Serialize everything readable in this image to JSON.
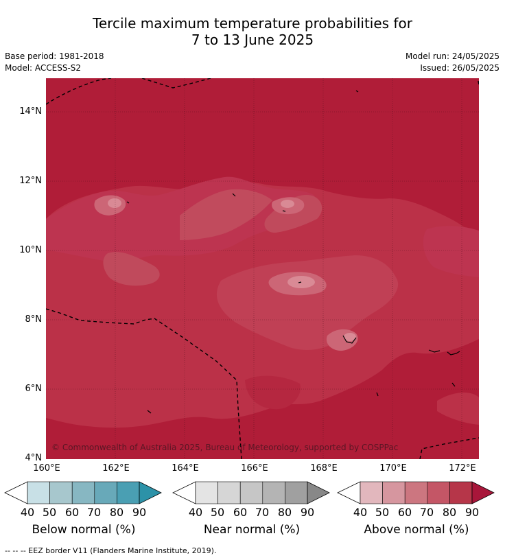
{
  "title_line1": "Tercile maximum temperature probabilities for",
  "title_line2": "7 to 13 June 2025",
  "base_period": "Base period: 1981-2018",
  "model": "Model: ACCESS-S2",
  "model_run": "Model run: 24/05/2025",
  "issued": "Issued: 26/05/2025",
  "lat_labels": [
    "14°N",
    "12°N",
    "10°N",
    "8°N",
    "6°N",
    "4°N"
  ],
  "lon_labels": [
    "160°E",
    "162°E",
    "164°E",
    "166°E",
    "168°E",
    "170°E",
    "172°E"
  ],
  "copyright": "© Commonwealth of Australia 2025, Bureau of Meteorology, supported by COSPPac",
  "colorbars": [
    {
      "label": "Below normal (%)",
      "ticks": [
        "40",
        "50",
        "60",
        "70",
        "80",
        "90"
      ],
      "colors": [
        "#c8e0e6",
        "#a7c7cd",
        "#87b7c2",
        "#68a9b9",
        "#4a9fb3",
        "#2c92a8"
      ]
    },
    {
      "label": "Near normal (%)",
      "ticks": [
        "40",
        "50",
        "60",
        "70",
        "80",
        "90"
      ],
      "colors": [
        "#e4e4e4",
        "#d6d6d6",
        "#c6c6c6",
        "#b4b4b4",
        "#a0a0a0",
        "#888888"
      ]
    },
    {
      "label": "Above normal (%)",
      "ticks": [
        "40",
        "50",
        "60",
        "70",
        "80",
        "90"
      ],
      "colors": [
        "#e2b7bd",
        "#d6969f",
        "#cc7680",
        "#c45666",
        "#b63649",
        "#a8163a"
      ]
    }
  ],
  "footer": "--  --  -- EEZ border V11 (Flanders Marine Institute, 2019)."
}
